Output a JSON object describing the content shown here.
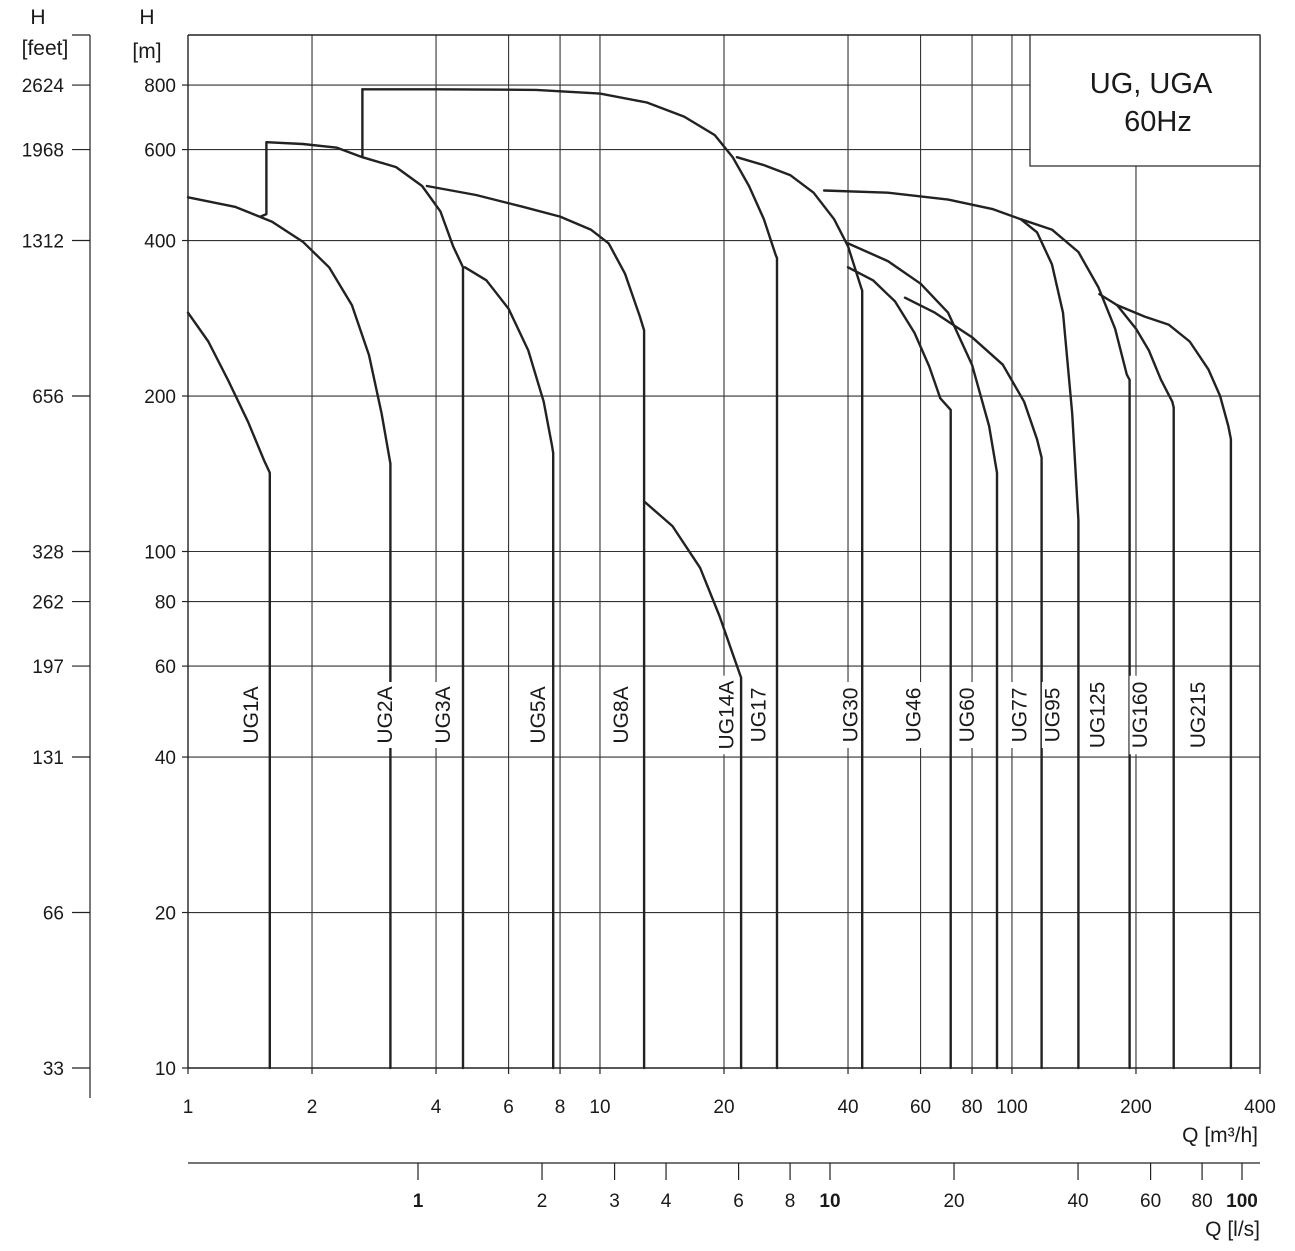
{
  "chart_data": {
    "type": "line",
    "title_lines": [
      "UG, UGA",
      "60Hz"
    ],
    "x_axis": {
      "label_lines": [
        "Q [m³/h]"
      ],
      "scale": "log",
      "range": [
        1,
        400
      ],
      "ticks": [
        {
          "value": 1,
          "label": "1"
        },
        {
          "value": 2,
          "label": "2"
        },
        {
          "value": 4,
          "label": "4"
        },
        {
          "value": 6,
          "label": "6"
        },
        {
          "value": 8,
          "label": "8"
        },
        {
          "value": 10,
          "label": "10"
        },
        {
          "value": 20,
          "label": "20"
        },
        {
          "value": 40,
          "label": "40"
        },
        {
          "value": 60,
          "label": "60"
        },
        {
          "value": 80,
          "label": "80"
        },
        {
          "value": 100,
          "label": "100"
        },
        {
          "value": 200,
          "label": "200"
        },
        {
          "value": 400,
          "label": "400"
        }
      ],
      "grid": [
        2,
        4,
        6,
        8,
        10,
        20,
        40,
        60,
        80,
        100,
        200
      ]
    },
    "x2_axis": {
      "label": "Q [l/s]",
      "scale": "log",
      "ticks": [
        {
          "value": 1,
          "label": "1",
          "bold": true
        },
        {
          "value": 2,
          "label": "2"
        },
        {
          "value": 3,
          "label": "3"
        },
        {
          "value": 4,
          "label": "4"
        },
        {
          "value": 6,
          "label": "6"
        },
        {
          "value": 8,
          "label": "8"
        },
        {
          "value": 10,
          "label": "10",
          "bold": true
        },
        {
          "value": 20,
          "label": "20"
        },
        {
          "value": 40,
          "label": "40"
        },
        {
          "value": 60,
          "label": "60"
        },
        {
          "value": 80,
          "label": "80"
        },
        {
          "value": 100,
          "label": "100",
          "bold": true
        }
      ]
    },
    "y_axis": {
      "label_lines": [
        "H",
        "[m]"
      ],
      "scale": "log",
      "range": [
        10,
        1000
      ],
      "ticks": [
        {
          "value": 10,
          "label": "10"
        },
        {
          "value": 20,
          "label": "20"
        },
        {
          "value": 40,
          "label": "40"
        },
        {
          "value": 60,
          "label": "60"
        },
        {
          "value": 80,
          "label": "80"
        },
        {
          "value": 100,
          "label": "100"
        },
        {
          "value": 200,
          "label": "200"
        },
        {
          "value": 400,
          "label": "400"
        },
        {
          "value": 600,
          "label": "600"
        },
        {
          "value": 800,
          "label": "800"
        }
      ]
    },
    "y2_axis": {
      "label_lines": [
        "H",
        "[feet]"
      ],
      "ticks": [
        {
          "value": 10,
          "label": "33"
        },
        {
          "value": 20,
          "label": "66"
        },
        {
          "value": 40,
          "label": "131"
        },
        {
          "value": 60,
          "label": "197"
        },
        {
          "value": 80,
          "label": "262"
        },
        {
          "value": 100,
          "label": "328"
        },
        {
          "value": 200,
          "label": "656"
        },
        {
          "value": 400,
          "label": "1312"
        },
        {
          "value": 600,
          "label": "1968"
        },
        {
          "value": 800,
          "label": "2624"
        },
        {
          "value": 1000,
          "label": ""
        }
      ]
    },
    "series": [
      {
        "name": "UG1A",
        "label_q": 1.42,
        "points": [
          [
            1,
            290
          ],
          [
            1.12,
            255
          ],
          [
            1.25,
            215
          ],
          [
            1.4,
            178
          ],
          [
            1.53,
            150
          ],
          [
            1.58,
            142
          ],
          [
            1.58,
            10
          ]
        ]
      },
      {
        "name": "UG2A",
        "label_q": 3.0,
        "points": [
          [
            1,
            485
          ],
          [
            1.3,
            465
          ],
          [
            1.6,
            435
          ],
          [
            1.9,
            398
          ],
          [
            2.2,
            355
          ],
          [
            2.5,
            300
          ],
          [
            2.75,
            240
          ],
          [
            2.95,
            185
          ],
          [
            3.1,
            148
          ],
          [
            3.1,
            10
          ]
        ]
      },
      {
        "name": "UG3A",
        "label_q": 4.15,
        "points": [
          [
            2.65,
            785
          ],
          [
            2.65,
            580
          ],
          [
            2.3,
            605
          ],
          [
            1.9,
            615
          ],
          [
            1.55,
            620
          ],
          [
            1.55,
            450
          ],
          [
            1.5,
            445
          ]
        ]
      },
      {
        "name": "UG3A-curve",
        "label_q": null,
        "points": [
          [
            2.65,
            580
          ],
          [
            3.2,
            555
          ],
          [
            3.7,
            510
          ],
          [
            4.1,
            455
          ],
          [
            4.4,
            390
          ],
          [
            4.65,
            355
          ],
          [
            4.65,
            10
          ]
        ]
      },
      {
        "name": "UG5A",
        "label_q": 7.05,
        "points": [
          [
            4.7,
            355
          ],
          [
            5.3,
            335
          ],
          [
            6.0,
            295
          ],
          [
            6.7,
            245
          ],
          [
            7.3,
            195
          ],
          [
            7.65,
            160
          ],
          [
            7.7,
            155
          ],
          [
            7.7,
            10
          ]
        ]
      },
      {
        "name": "UG8A",
        "label_q": 11.2,
        "points": [
          [
            3.8,
            510
          ],
          [
            5,
            490
          ],
          [
            6.5,
            465
          ],
          [
            8,
            445
          ],
          [
            9.5,
            420
          ],
          [
            10.5,
            395
          ],
          [
            11.5,
            345
          ],
          [
            12.5,
            285
          ],
          [
            12.8,
            268
          ],
          [
            12.8,
            10
          ]
        ]
      },
      {
        "name": "UG14A",
        "label_q": 20.2,
        "points": [
          [
            12.8,
            125
          ],
          [
            15,
            112
          ],
          [
            17.5,
            93
          ],
          [
            19.5,
            75
          ],
          [
            21.2,
            62
          ],
          [
            22.0,
            57
          ],
          [
            22.0,
            10
          ]
        ]
      },
      {
        "name": "UG17",
        "label_q": 24.2,
        "points": [
          [
            2.65,
            785
          ],
          [
            4,
            785
          ],
          [
            7,
            783
          ],
          [
            10,
            770
          ],
          [
            13,
            740
          ],
          [
            16,
            695
          ],
          [
            19,
            640
          ],
          [
            21,
            580
          ],
          [
            23,
            510
          ],
          [
            25,
            440
          ],
          [
            26.7,
            375
          ],
          [
            26.9,
            370
          ],
          [
            26.9,
            10
          ]
        ]
      },
      {
        "name": "UG30",
        "label_q": 40.5,
        "points": [
          [
            21.5,
            580
          ],
          [
            25,
            560
          ],
          [
            29,
            535
          ],
          [
            33,
            495
          ],
          [
            37,
            440
          ],
          [
            40,
            390
          ],
          [
            43,
            325
          ],
          [
            43.3,
            320
          ],
          [
            43.3,
            10
          ]
        ]
      },
      {
        "name": "UG46",
        "label_q": 57.5,
        "points": [
          [
            40,
            355
          ],
          [
            46,
            335
          ],
          [
            52,
            305
          ],
          [
            58,
            265
          ],
          [
            63,
            228
          ],
          [
            67,
            198
          ],
          [
            71,
            188
          ],
          [
            71,
            10
          ]
        ]
      },
      {
        "name": "UG60",
        "label_q": 77.5,
        "points": [
          [
            40,
            395
          ],
          [
            50,
            365
          ],
          [
            60,
            330
          ],
          [
            70,
            290
          ],
          [
            80,
            230
          ],
          [
            88,
            175
          ],
          [
            92,
            142
          ],
          [
            92,
            10
          ]
        ]
      },
      {
        "name": "UG77",
        "label_q": 104,
        "points": [
          [
            55,
            310
          ],
          [
            65,
            290
          ],
          [
            80,
            260
          ],
          [
            95,
            230
          ],
          [
            107,
            195
          ],
          [
            115,
            165
          ],
          [
            118,
            152
          ],
          [
            118,
            10
          ]
        ]
      },
      {
        "name": "UG95",
        "label_q": 125,
        "points": [
          [
            35,
            500
          ],
          [
            50,
            495
          ],
          [
            70,
            480
          ],
          [
            90,
            460
          ],
          [
            105,
            440
          ],
          [
            115,
            415
          ],
          [
            125,
            360
          ],
          [
            133,
            290
          ],
          [
            140,
            185
          ],
          [
            145,
            115
          ],
          [
            145,
            10
          ]
        ]
      },
      {
        "name": "UG125",
        "label_q": 161,
        "points": [
          [
            105,
            440
          ],
          [
            125,
            420
          ],
          [
            145,
            380
          ],
          [
            162,
            325
          ],
          [
            178,
            270
          ],
          [
            190,
            220
          ],
          [
            193,
            215
          ],
          [
            193,
            10
          ]
        ]
      },
      {
        "name": "UG160",
        "label_q": 204,
        "points": [
          [
            163,
            315
          ],
          [
            180,
            300
          ],
          [
            200,
            270
          ],
          [
            215,
            245
          ],
          [
            230,
            215
          ],
          [
            245,
            195
          ],
          [
            247,
            190
          ],
          [
            247,
            10
          ]
        ]
      },
      {
        "name": "UG215",
        "label_q": 282,
        "points": [
          [
            180,
            300
          ],
          [
            210,
            285
          ],
          [
            240,
            275
          ],
          [
            270,
            255
          ],
          [
            300,
            225
          ],
          [
            320,
            200
          ],
          [
            335,
            175
          ],
          [
            340,
            165
          ],
          [
            340,
            10
          ]
        ]
      }
    ]
  }
}
